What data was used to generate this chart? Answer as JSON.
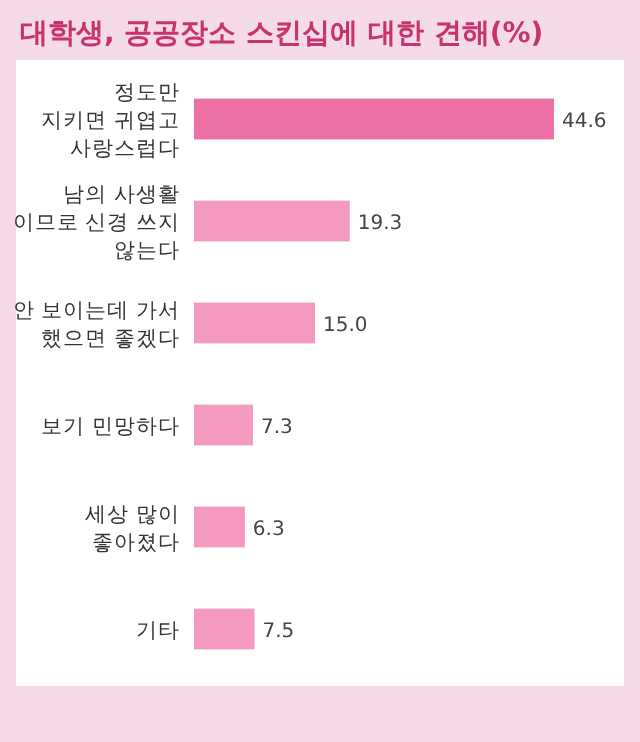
{
  "chart_data": {
    "type": "bar",
    "orientation": "horizontal",
    "title": "대학생, 공공장소 스킨십에 대한 견해(%)",
    "categories": [
      "정도만\n지키면 귀엽고\n사랑스럽다",
      "남의 사생활\n이므로 신경 쓰지\n않는다",
      "안 보이는데 가서\n했으면 좋겠다",
      "보기 민망하다",
      "세상 많이\n좋아졌다",
      "기타"
    ],
    "values": [
      44.6,
      19.3,
      15.0,
      7.3,
      6.3,
      7.5
    ],
    "value_labels": [
      "44.6",
      "19.3",
      "15.0",
      "7.3",
      "6.3",
      "7.5"
    ],
    "colors": [
      "#ec6fa6",
      "#f49ac1",
      "#f49ac1",
      "#f49ac1",
      "#f49ac1",
      "#f49ac1"
    ]
  }
}
